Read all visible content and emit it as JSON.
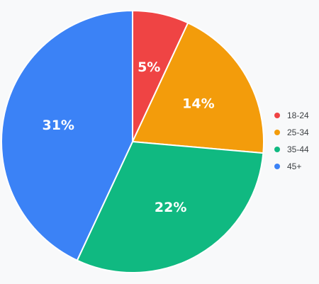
{
  "chart_data": {
    "type": "pie",
    "title": "",
    "legend_position": "right",
    "slices": [
      {
        "label": "18-24",
        "value": 5,
        "display": "5%",
        "color": "#ef4444"
      },
      {
        "label": "25-34",
        "value": 14,
        "display": "14%",
        "color": "#f39c0b"
      },
      {
        "label": "35-44",
        "value": 22,
        "display": "22%",
        "color": "#10b981"
      },
      {
        "label": "45+",
        "value": 31,
        "display": "31%",
        "color": "#3b82f6"
      }
    ]
  }
}
